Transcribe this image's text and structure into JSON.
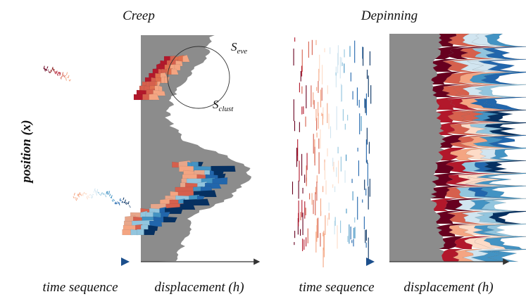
{
  "titles": {
    "creep": "Creep",
    "depinning": "Depinning"
  },
  "y_label": "position (x)",
  "panels": [
    {
      "x_label": "time sequence"
    },
    {
      "x_label": "displacement (h)"
    },
    {
      "x_label": "time sequence"
    },
    {
      "x_label": "displacement (h)"
    }
  ],
  "annotations": {
    "s_eve": {
      "main": "S",
      "sub": "eve"
    },
    "s_clust": {
      "main": "S",
      "sub": "clust"
    }
  }
}
